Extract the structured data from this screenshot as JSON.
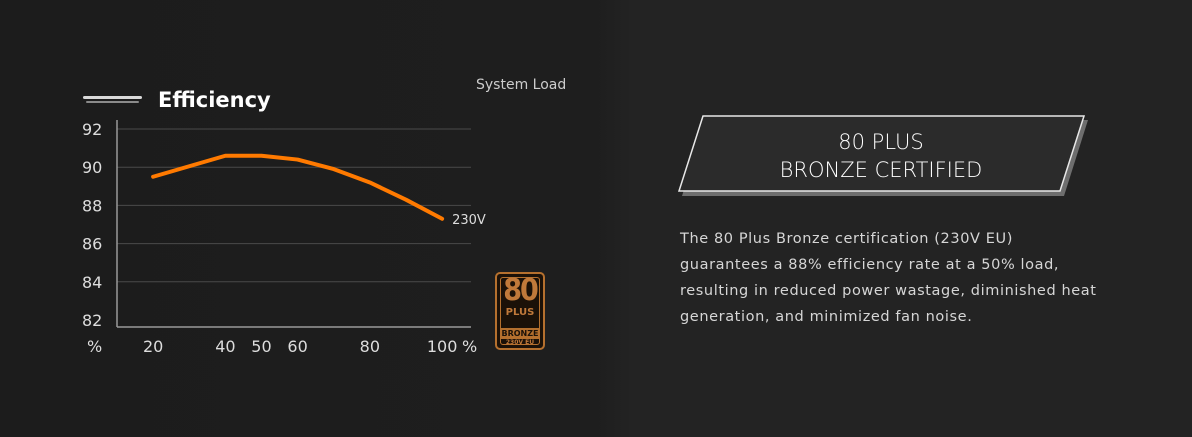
{
  "chart_data": {
    "type": "line",
    "title": "Efficiency",
    "xlabel": "System Load",
    "x_unit": "%",
    "y_unit": "%",
    "x_ticks": [
      20,
      40,
      50,
      60,
      80,
      100
    ],
    "y_ticks": [
      82,
      84,
      86,
      88,
      90,
      92
    ],
    "ylim": [
      82,
      92
    ],
    "grid": true,
    "series": [
      {
        "name": "230V",
        "color": "#ff7a00",
        "x": [
          20,
          40,
          50,
          60,
          70,
          80,
          90,
          100
        ],
        "y": [
          89.5,
          90.6,
          90.6,
          90.4,
          89.9,
          89.2,
          88.3,
          87.3
        ]
      }
    ]
  },
  "badge": {
    "number": "80",
    "plus": "PLUS",
    "tier": "BRONZE",
    "voltage": "230V EU"
  },
  "certification": {
    "line1": "80 PLUS",
    "line2": "BRONZE CERTIFIED",
    "description": "The 80 Plus Bronze certification (230V EU) guarantees a 88% efficiency rate at a 50% load, resulting in reduced power wastage, diminished heat generation, and minimized fan noise."
  },
  "colors": {
    "accent": "#ff7a00",
    "bronze": "#b5702e",
    "grid": "#4a4a4a"
  }
}
